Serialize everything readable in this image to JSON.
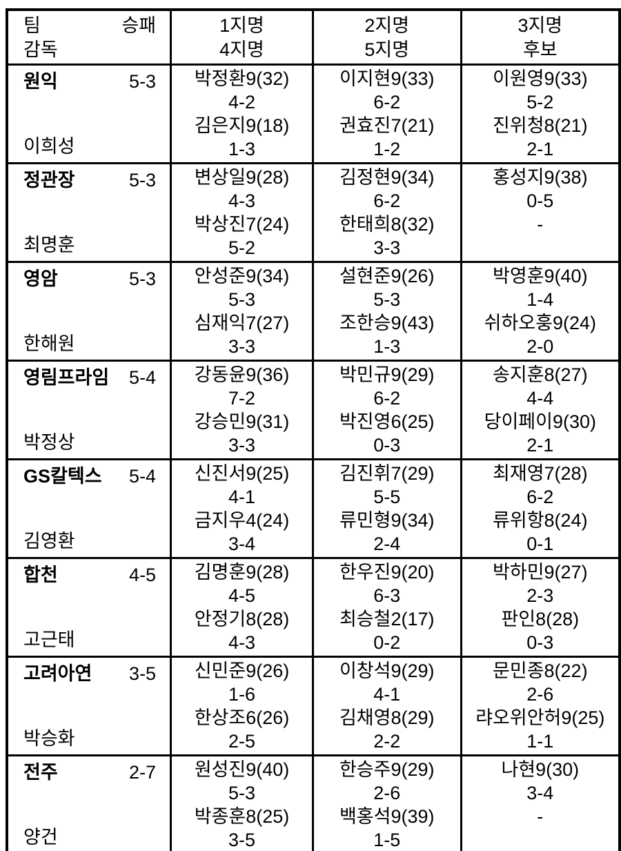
{
  "colors": {
    "text": "#000000",
    "border": "#000000",
    "background": "#ffffff"
  },
  "header": {
    "team_label": "팀",
    "record_label": "승패",
    "coach_label": "감독",
    "col2_line1": "1지명",
    "col2_line2": "4지명",
    "col3_line1": "2지명",
    "col3_line2": "5지명",
    "col4_line1": "3지명",
    "col4_line2": "후보"
  },
  "teams": [
    {
      "name": "원익",
      "record": "5-3",
      "coach": "이희성",
      "picks": [
        [
          "박정환9(32)",
          "4-2",
          "김은지9(18)",
          "1-3"
        ],
        [
          "이지현9(33)",
          "6-2",
          "권효진7(21)",
          "1-2"
        ],
        [
          "이원영9(33)",
          "5-2",
          "진위청8(21)",
          "2-1"
        ]
      ]
    },
    {
      "name": "정관장",
      "record": "5-3",
      "coach": "최명훈",
      "picks": [
        [
          "변상일9(28)",
          "4-3",
          "박상진7(24)",
          "5-2"
        ],
        [
          "김정현9(34)",
          "6-2",
          "한태희8(32)",
          "3-3"
        ],
        [
          "홍성지9(38)",
          "0-5",
          "-",
          ""
        ]
      ]
    },
    {
      "name": "영암",
      "record": "5-3",
      "coach": "한해원",
      "picks": [
        [
          "안성준9(34)",
          "5-3",
          "심재익7(27)",
          "3-3"
        ],
        [
          "설현준9(26)",
          "5-3",
          "조한승9(43)",
          "1-3"
        ],
        [
          "박영훈9(40)",
          "1-4",
          "쉬하오훙9(24)",
          "2-0"
        ]
      ]
    },
    {
      "name": "영림프라임",
      "record": "5-4",
      "coach": "박정상",
      "picks": [
        [
          "강동윤9(36)",
          "7-2",
          "강승민9(31)",
          "3-3"
        ],
        [
          "박민규9(29)",
          "6-2",
          "박진영6(25)",
          "0-3"
        ],
        [
          "송지훈8(27)",
          "4-4",
          "당이페이9(30)",
          "2-1"
        ]
      ]
    },
    {
      "name": "GS칼텍스",
      "record": "5-4",
      "coach": "김영환",
      "picks": [
        [
          "신진서9(25)",
          "4-1",
          "금지우4(24)",
          "3-4"
        ],
        [
          "김진휘7(29)",
          "5-5",
          "류민형9(34)",
          "2-4"
        ],
        [
          "최재영7(28)",
          "6-2",
          "류위항8(24)",
          "0-1"
        ]
      ]
    },
    {
      "name": "합천",
      "record": "4-5",
      "coach": "고근태",
      "picks": [
        [
          "김명훈9(28)",
          "4-5",
          "안정기8(28)",
          "4-3"
        ],
        [
          "한우진9(20)",
          "6-3",
          "최승철2(17)",
          "0-2"
        ],
        [
          "박하민9(27)",
          "2-3",
          "판인8(28)",
          "0-3"
        ]
      ]
    },
    {
      "name": "고려아연",
      "record": "3-5",
      "coach": "박승화",
      "picks": [
        [
          "신민준9(26)",
          "1-6",
          "한상조6(26)",
          "2-5"
        ],
        [
          "이창석9(29)",
          "4-1",
          "김채영8(29)",
          "2-2"
        ],
        [
          "문민종8(22)",
          "2-6",
          "랴오위안허9(25)",
          "1-1"
        ]
      ]
    },
    {
      "name": "전주",
      "record": "2-7",
      "coach": "양건",
      "picks": [
        [
          "원성진9(40)",
          "5-3",
          "박종훈8(25)",
          "3-5"
        ],
        [
          "한승주9(29)",
          "2-6",
          "백홍석9(39)",
          "1-5"
        ],
        [
          "나현9(30)",
          "3-4",
          "-",
          ""
        ]
      ]
    }
  ]
}
